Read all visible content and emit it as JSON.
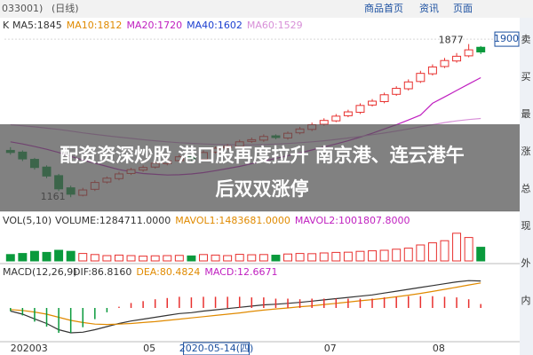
{
  "header": {
    "code": "033001)",
    "period": "(日线)",
    "links": [
      "商品首页",
      "资讯",
      "页面"
    ]
  },
  "side_panel": [
    "卖",
    "买",
    "最",
    "涨",
    "总",
    "现",
    "外",
    "内"
  ],
  "caption": [
    "配资资深炒股 港口股再度拉升 南京港、连云港午",
    "后双双涨停"
  ],
  "chart_data": [
    {
      "type": "candlestick",
      "label": "K",
      "categories": [
        "202003",
        null,
        null,
        null,
        null,
        null,
        null,
        null,
        null,
        null,
        null,
        "05",
        null,
        null,
        null,
        null,
        null,
        "2020-05-14(四)",
        null,
        null,
        null,
        null,
        null,
        null,
        null,
        null,
        "07",
        null,
        null,
        null,
        null,
        null,
        null,
        null,
        null,
        "08",
        null,
        null,
        null,
        null
      ],
      "open": [
        1380,
        1372,
        1338,
        1302,
        1262,
        1205,
        1170,
        1198,
        1232,
        1248,
        1272,
        1288,
        1302,
        1318,
        1332,
        1352,
        1338,
        1372,
        1392,
        1398,
        1422,
        1428,
        1448,
        1438,
        1462,
        1478,
        1502,
        1518,
        1542,
        1558,
        1592,
        1608,
        1642,
        1668,
        1702,
        1738,
        1772,
        1798,
        1822,
        1862
      ],
      "high": [
        1395,
        1380,
        1345,
        1310,
        1270,
        1215,
        1205,
        1240,
        1258,
        1280,
        1298,
        1310,
        1330,
        1340,
        1360,
        1358,
        1380,
        1398,
        1410,
        1430,
        1440,
        1455,
        1455,
        1468,
        1490,
        1510,
        1530,
        1550,
        1570,
        1600,
        1620,
        1650,
        1680,
        1712,
        1752,
        1782,
        1812,
        1835,
        1877,
        1868
      ],
      "low": [
        1360,
        1330,
        1290,
        1250,
        1190,
        1161,
        1165,
        1190,
        1225,
        1240,
        1265,
        1280,
        1295,
        1310,
        1325,
        1330,
        1330,
        1365,
        1385,
        1392,
        1415,
        1420,
        1432,
        1430,
        1455,
        1470,
        1495,
        1512,
        1535,
        1550,
        1585,
        1600,
        1635,
        1660,
        1695,
        1730,
        1765,
        1790,
        1815,
        1830
      ],
      "close": [
        1370,
        1340,
        1300,
        1260,
        1200,
        1175,
        1195,
        1230,
        1250,
        1270,
        1290,
        1300,
        1320,
        1330,
        1350,
        1340,
        1370,
        1390,
        1400,
        1420,
        1430,
        1445,
        1440,
        1460,
        1480,
        1500,
        1520,
        1540,
        1560,
        1590,
        1610,
        1640,
        1670,
        1700,
        1740,
        1770,
        1800,
        1820,
        1850,
        1840
      ],
      "up_color": "#e8312f",
      "down_color": "#0a9a3c",
      "ylim": [
        1108,
        1917
      ],
      "yticks": [
        1900
      ],
      "max_label": 1877,
      "min_label": 1161,
      "legend": [
        {
          "text": "MA5:1845",
          "color": "#333333"
        },
        {
          "text": "MA10:1812",
          "color": "#e08a00"
        },
        {
          "text": "MA20:1720",
          "color": "#c020c0",
          "values": [
            1420,
            1410,
            1398,
            1385,
            1370,
            1352,
            1335,
            1320,
            1305,
            1290,
            1280,
            1272,
            1268,
            1265,
            1266,
            1270,
            1276,
            1285,
            1295,
            1305,
            1318,
            1330,
            1342,
            1355,
            1368,
            1382,
            1396,
            1410,
            1425,
            1442,
            1460,
            1480,
            1500,
            1522,
            1545,
            1600,
            1630,
            1660,
            1690,
            1720
          ]
        },
        {
          "text": "MA40:1602",
          "color": "#1c3fd0"
        },
        {
          "text": "MA60:1529",
          "color": "#d890d8",
          "values": [
            1500,
            1495,
            1490,
            1484,
            1478,
            1470,
            1462,
            1455,
            1448,
            1442,
            1436,
            1430,
            1425,
            1420,
            1416,
            1413,
            1410,
            1408,
            1407,
            1406,
            1406,
            1407,
            1409,
            1412,
            1416,
            1420,
            1425,
            1431,
            1438,
            1445,
            1453,
            1461,
            1470,
            1480,
            1490,
            1500,
            1510,
            1518,
            1524,
            1529
          ]
        }
      ]
    },
    {
      "type": "bar",
      "title": "VOL(5,10)",
      "legend": [
        {
          "text": "VOLUME:1284711.0000",
          "color": "#333333"
        },
        {
          "text": "MAVOL1:1483681.0000",
          "color": "#e08a00"
        },
        {
          "text": "MAVOL2:1001807.8000",
          "color": "#c020c0"
        }
      ],
      "values": [
        600000,
        700000,
        900000,
        800000,
        1000000,
        900000,
        700000,
        600000,
        500000,
        550000,
        500000,
        450000,
        480000,
        500000,
        520000,
        470000,
        600000,
        550000,
        500000,
        620000,
        580000,
        600000,
        540000,
        650000,
        700000,
        680000,
        750000,
        800000,
        820000,
        900000,
        950000,
        1000000,
        1100000,
        1200000,
        1500000,
        1700000,
        1900000,
        2600000,
        2200000,
        1284711
      ],
      "ylim": [
        0,
        3000000
      ]
    },
    {
      "type": "line",
      "title": "MACD(12,26,9)",
      "series": [
        {
          "name": "DIF:86.8160",
          "color": "#333333",
          "values": [
            -10,
            -20,
            -35,
            -50,
            -70,
            -80,
            -78,
            -70,
            -60,
            -50,
            -42,
            -36,
            -30,
            -24,
            -18,
            -15,
            -10,
            -6,
            -2,
            2,
            6,
            10,
            12,
            15,
            18,
            22,
            26,
            30,
            34,
            38,
            42,
            48,
            54,
            60,
            66,
            72,
            78,
            84,
            88,
            86.816
          ]
        },
        {
          "name": "DEA:80.4824",
          "color": "#e08a00",
          "values": [
            -5,
            -8,
            -13,
            -20,
            -30,
            -40,
            -47,
            -52,
            -53,
            -52,
            -50,
            -47,
            -44,
            -40,
            -36,
            -32,
            -28,
            -24,
            -20,
            -16,
            -11,
            -7,
            -3,
            0,
            4,
            7,
            11,
            15,
            19,
            23,
            27,
            31,
            36,
            41,
            47,
            53,
            60,
            67,
            74,
            80.4824
          ]
        },
        {
          "name": "MACD:12.6671",
          "color": "#c020c0",
          "bars": true,
          "values": [
            -10,
            -24,
            -44,
            -60,
            -80,
            -80,
            -62,
            -36,
            -14,
            4,
            16,
            22,
            28,
            32,
            36,
            34,
            36,
            36,
            36,
            36,
            34,
            34,
            30,
            30,
            28,
            30,
            30,
            30,
            30,
            30,
            30,
            34,
            36,
            38,
            38,
            38,
            36,
            34,
            28,
            12.6671
          ]
        }
      ],
      "up_color": "#e8312f",
      "down_color": "#0a9a3c",
      "ylim": [
        -100,
        100
      ]
    }
  ]
}
